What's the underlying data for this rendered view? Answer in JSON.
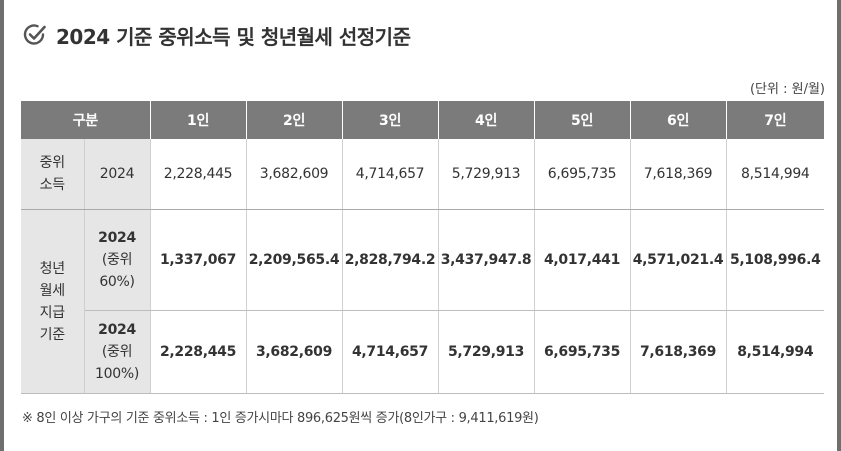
{
  "title": "2024 기준 중위소득 및 청년월세 선정기준",
  "unit": "(단위 : 원/월)",
  "table": {
    "headers": [
      "구분",
      "1인",
      "2인",
      "3인",
      "4인",
      "5인",
      "6인",
      "7인"
    ],
    "median": {
      "label_line1": "중위",
      "label_line2": "소득",
      "year": "2024",
      "values": [
        "2,228,445",
        "3,682,609",
        "4,714,657",
        "5,729,913",
        "6,695,735",
        "7,618,369",
        "8,514,994"
      ]
    },
    "criteria_label_lines": [
      "청년",
      "월세",
      "지급",
      "기준"
    ],
    "row60": {
      "sub_line1": "2024",
      "sub_line2": "(중위",
      "sub_line3": "60%)",
      "values": [
        "1,337,067",
        "2,209,565.4",
        "2,828,794.2",
        "3,437,947.8",
        "4,017,441",
        "4,571,021.4",
        "5,108,996.4"
      ]
    },
    "row100": {
      "sub_line1": "2024",
      "sub_line2": "(중위",
      "sub_line3": "100%)",
      "values": [
        "2,228,445",
        "3,682,609",
        "4,714,657",
        "5,729,913",
        "6,695,735",
        "7,618,369",
        "8,514,994"
      ]
    }
  },
  "footnote": "※ 8인 이상 가구의 기준 중위소득 : 1인 증가시마다 896,625원씩 증가(8인가구 : 9,411,619원)",
  "colors": {
    "header_bg": "#7b7b7b",
    "label_bg": "#e6e6e6",
    "frame": "#6f6f6f"
  },
  "icons": {
    "title_icon": "check-circle-icon"
  }
}
